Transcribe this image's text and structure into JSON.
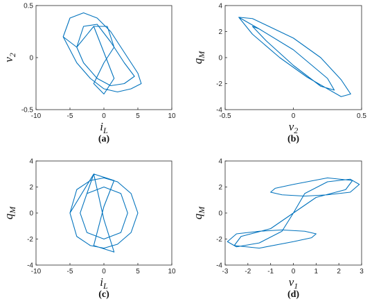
{
  "chart_data": [
    {
      "type": "line",
      "caption": "(a)",
      "xlabel": [
        "i",
        "L"
      ],
      "ylabel": [
        "v",
        "2"
      ],
      "color": "#0072bd",
      "xlim": [
        -10,
        10
      ],
      "xticks": [
        -10,
        -5,
        0,
        5,
        10
      ],
      "ylim": [
        -0.5,
        0.5
      ],
      "yticks": [
        -0.5,
        0,
        0.5
      ],
      "x": [
        -6,
        -5,
        -3,
        -1,
        1,
        3,
        5,
        5.5,
        4,
        2,
        0,
        -2,
        -4,
        -6,
        -4,
        -3,
        -1,
        1,
        3,
        4.5,
        3,
        1,
        -1,
        -3,
        -4,
        -1.5,
        0.5,
        1.5,
        0,
        -1.5,
        0,
        1.5,
        -1.5
      ],
      "values": [
        0.2,
        0.38,
        0.43,
        0.38,
        0.25,
        0.05,
        -0.15,
        -0.25,
        -0.3,
        -0.33,
        -0.3,
        -0.2,
        -0.05,
        0.2,
        0.1,
        0.3,
        0.32,
        0.15,
        -0.05,
        -0.18,
        -0.25,
        -0.27,
        -0.2,
        -0.05,
        0.1,
        0.3,
        0.3,
        0.1,
        -0.05,
        -0.25,
        -0.35,
        -0.2,
        0.3
      ]
    },
    {
      "type": "line",
      "caption": "(b)",
      "xlabel": [
        "v",
        "2"
      ],
      "ylabel": [
        "q",
        "M"
      ],
      "color": "#0072bd",
      "xlim": [
        -0.5,
        0.5
      ],
      "xticks": [
        -0.5,
        0,
        0.5
      ],
      "ylim": [
        -4,
        4
      ],
      "yticks": [
        -4,
        -2,
        0,
        2,
        4
      ],
      "x": [
        -0.4,
        -0.3,
        0,
        0.2,
        0.35,
        0.42,
        0.35,
        0.1,
        -0.1,
        -0.3,
        -0.4,
        -0.25,
        0,
        0.25,
        0.3,
        0.2,
        0,
        -0.2,
        -0.3,
        -0.25
      ],
      "values": [
        3.1,
        3,
        1.5,
        0,
        -1.7,
        -2.8,
        -3,
        -1.5,
        0,
        1.8,
        3.1,
        2.2,
        0.6,
        -1.6,
        -2.5,
        -2.2,
        -0.6,
        1.3,
        2.4,
        2.2
      ]
    },
    {
      "type": "line",
      "caption": "(c)",
      "xlabel": [
        "i",
        "L"
      ],
      "ylabel": [
        "q",
        "M"
      ],
      "color": "#0072bd",
      "xlim": [
        -10,
        10
      ],
      "xticks": [
        -10,
        -5,
        0,
        5,
        10
      ],
      "ylim": [
        -4,
        4
      ],
      "yticks": [
        -4,
        -2,
        0,
        2,
        4
      ],
      "x": [
        -5,
        -4,
        -2,
        0,
        2,
        4,
        5,
        4,
        2,
        0,
        -2,
        -4,
        -5,
        -1.5,
        1.5,
        0,
        -1.5,
        1.5,
        0,
        -1.5,
        -3.5,
        -2.5,
        0,
        2.5,
        3.5,
        2.5,
        0,
        -2.5,
        -3.5
      ],
      "values": [
        0,
        1.8,
        2.5,
        2.7,
        2.4,
        1.5,
        0,
        -1.5,
        -2.4,
        -2.7,
        -2.5,
        -1.8,
        0,
        3,
        2.5,
        0.5,
        -2.5,
        -3,
        -0.5,
        3,
        0,
        1.5,
        2,
        1.5,
        0,
        -1.5,
        -2,
        -1.5,
        0
      ]
    },
    {
      "type": "line",
      "caption": "(d)",
      "xlabel": [
        "v",
        "1"
      ],
      "ylabel": [
        "q",
        "M"
      ],
      "color": "#0072bd",
      "xlim": [
        -3,
        3
      ],
      "xticks": [
        -3,
        -2,
        -1,
        0,
        1,
        2,
        3
      ],
      "ylim": [
        -4,
        4
      ],
      "yticks": [
        -4,
        -2,
        0,
        2,
        4
      ],
      "x": [
        0,
        0.5,
        1.5,
        2.5,
        2.9,
        2.5,
        1.5,
        0.5,
        -0.5,
        -1,
        -0.8,
        0,
        1.5,
        2.6,
        2.3,
        1,
        0,
        -0.5,
        -1.5,
        -2.5,
        -2.9,
        -2.5,
        -1.5,
        -0.5,
        0.5,
        1,
        0.8,
        0,
        -1.5,
        -2.6,
        -2.3,
        -1,
        0
      ],
      "values": [
        0,
        1.5,
        2.4,
        2.6,
        2.2,
        1.6,
        1.4,
        1.3,
        1.4,
        1.6,
        1.9,
        2.2,
        2.7,
        2.5,
        1.8,
        1.2,
        0,
        -1.4,
        -2.3,
        -2.6,
        -2.2,
        -1.6,
        -1.4,
        -1.3,
        -1.4,
        -1.6,
        -1.9,
        -2.2,
        -2.7,
        -2.5,
        -1.8,
        -1.2,
        0
      ]
    }
  ]
}
